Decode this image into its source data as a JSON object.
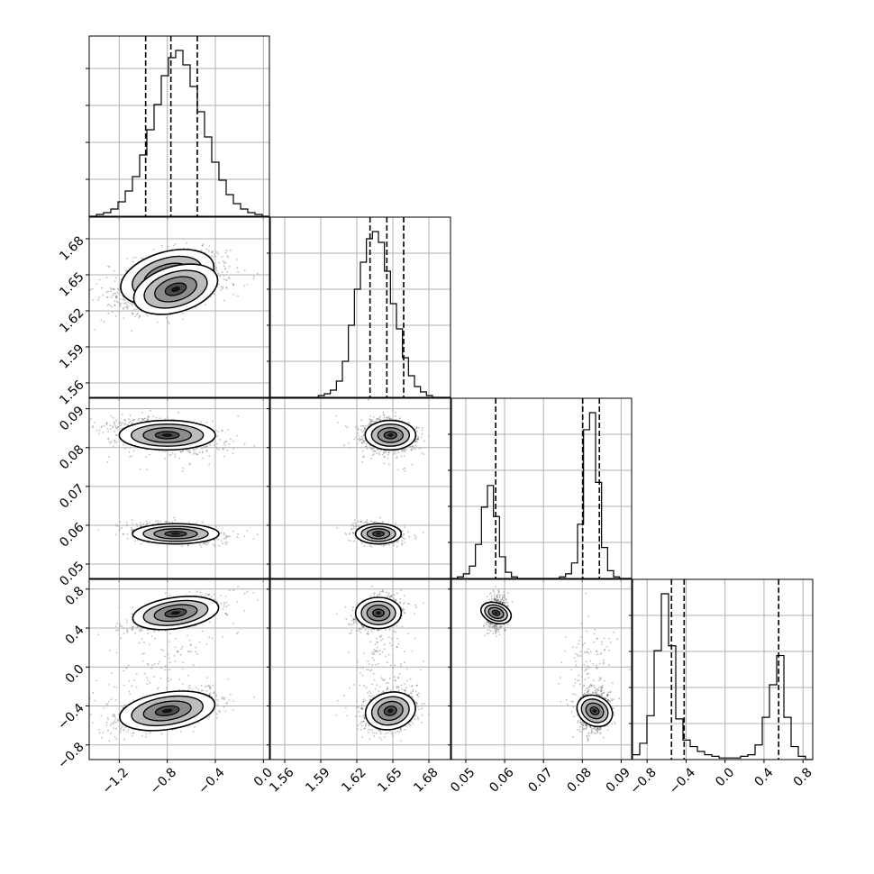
{
  "chart_data": {
    "type": "corner",
    "title": "",
    "grid": true,
    "parameters": [
      {
        "range": [
          -1.45,
          0.05
        ],
        "ticks": [
          -1.2,
          -0.8,
          -0.4,
          0.0
        ],
        "tick_labels": [
          "−1.2",
          "−0.8",
          "−0.4",
          "0.0"
        ],
        "quantiles": [
          -0.98,
          -0.77,
          -0.55
        ]
      },
      {
        "range": [
          1.548,
          1.698
        ],
        "ticks": [
          1.56,
          1.59,
          1.62,
          1.65,
          1.68
        ],
        "tick_labels": [
          "1.56",
          "1.59",
          "1.62",
          "1.65",
          "1.68"
        ],
        "quantiles": [
          1.631,
          1.645,
          1.659
        ]
      },
      {
        "range": [
          0.0463,
          0.0927
        ],
        "ticks": [
          0.05,
          0.06,
          0.07,
          0.08,
          0.09
        ],
        "tick_labels": [
          "0.05",
          "0.06",
          "0.07",
          "0.08",
          "0.09"
        ],
        "quantiles": [
          0.0577,
          0.0801,
          0.0844
        ]
      },
      {
        "range": [
          -0.95,
          0.9
        ],
        "ticks": [
          -0.8,
          -0.4,
          0.0,
          0.4,
          0.8
        ],
        "tick_labels": [
          "−0.8",
          "−0.4",
          "0.0",
          "0.4",
          "0.8"
        ],
        "quantiles": [
          -0.55,
          -0.42,
          0.55
        ]
      }
    ],
    "diagonal_histograms": [
      {
        "edges": [
          -1.45,
          0.05
        ],
        "counts": [
          0,
          1,
          2,
          4,
          8,
          14,
          22,
          34,
          48,
          62,
          78,
          88,
          92,
          84,
          72,
          58,
          44,
          30,
          20,
          12,
          7,
          4,
          2,
          1,
          0
        ]
      },
      {
        "edges": [
          1.548,
          1.698
        ],
        "counts": [
          0,
          0,
          0,
          0,
          0,
          0,
          0,
          0,
          1,
          2,
          4,
          9,
          20,
          40,
          60,
          75,
          88,
          92,
          86,
          70,
          52,
          38,
          22,
          12,
          6,
          3,
          1,
          0,
          0,
          0
        ]
      },
      {
        "edges": [
          0.0463,
          0.0927
        ],
        "counts": [
          0,
          1,
          3,
          8,
          22,
          46,
          60,
          40,
          14,
          4,
          1,
          0,
          0,
          0,
          0,
          0,
          0,
          0,
          1,
          3,
          10,
          35,
          96,
          107,
          62,
          20,
          5,
          1,
          0,
          0
        ]
      },
      {
        "edges": [
          -0.95,
          0.9
        ],
        "counts": [
          3,
          10,
          27,
          67,
          102,
          70,
          25,
          12,
          8,
          5,
          3,
          2,
          1,
          1,
          1,
          2,
          3,
          9,
          26,
          46,
          64,
          26,
          8,
          2,
          0
        ]
      }
    ],
    "modes": [
      {
        "weight": 0.62,
        "mean": [
          -0.8,
          1.648,
          0.0832,
          -0.45
        ],
        "sd": [
          0.2,
          0.0105,
          0.0019,
          0.095
        ]
      },
      {
        "weight": 0.38,
        "mean": [
          -0.73,
          1.638,
          0.0578,
          0.555
        ],
        "sd": [
          0.18,
          0.0095,
          0.0013,
          0.08
        ]
      }
    ],
    "tail_component": {
      "weight": 0.06,
      "mean": [
        -0.9,
        1.64,
        0.0825,
        0.0
      ],
      "sd": [
        0.3,
        0.014,
        0.004,
        0.25
      ]
    }
  }
}
